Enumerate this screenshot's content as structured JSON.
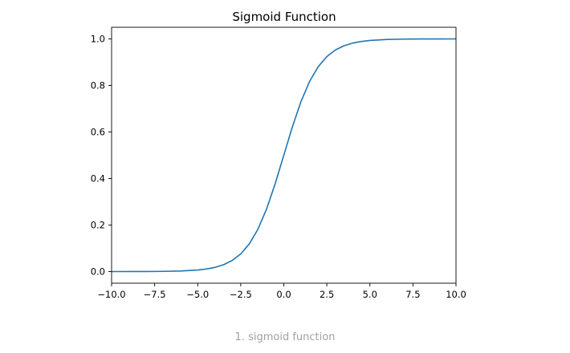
{
  "caption": "1. sigmoid function",
  "chart_data": {
    "type": "line",
    "title": "Sigmoid Function",
    "xlabel": "",
    "ylabel": "",
    "xlim": [
      -10,
      10
    ],
    "ylim": [
      -0.05,
      1.05
    ],
    "x_ticks": [
      -10,
      -7.5,
      -5,
      -2.5,
      0,
      2.5,
      5,
      7.5,
      10
    ],
    "x_tick_labels": [
      "−10.0",
      "−7.5",
      "−5.0",
      "−2.5",
      "0.0",
      "2.5",
      "5.0",
      "7.5",
      "10.0"
    ],
    "y_ticks": [
      0,
      0.2,
      0.4,
      0.6,
      0.8,
      1.0
    ],
    "y_tick_labels": [
      "0.0",
      "0.2",
      "0.4",
      "0.6",
      "0.8",
      "1.0"
    ],
    "grid": false,
    "series": [
      {
        "color": "#1f77b4",
        "x": [
          -10,
          -9,
          -8,
          -7,
          -6,
          -5,
          -4.5,
          -4,
          -3.5,
          -3,
          -2.5,
          -2,
          -1.5,
          -1,
          -0.5,
          0,
          0.5,
          1,
          1.5,
          2,
          2.5,
          3,
          3.5,
          4,
          4.5,
          5,
          6,
          7,
          8,
          9,
          10
        ],
        "y": [
          4.54e-05,
          0.000123,
          0.000335,
          0.000911,
          0.00247,
          0.00669,
          0.011,
          0.018,
          0.0293,
          0.0474,
          0.0759,
          0.1192,
          0.1824,
          0.2689,
          0.3775,
          0.5,
          0.6225,
          0.7311,
          0.8176,
          0.8808,
          0.9241,
          0.9526,
          0.9707,
          0.982,
          0.989,
          0.99331,
          0.99753,
          0.99909,
          0.999665,
          0.999877,
          0.9999546
        ]
      }
    ]
  }
}
